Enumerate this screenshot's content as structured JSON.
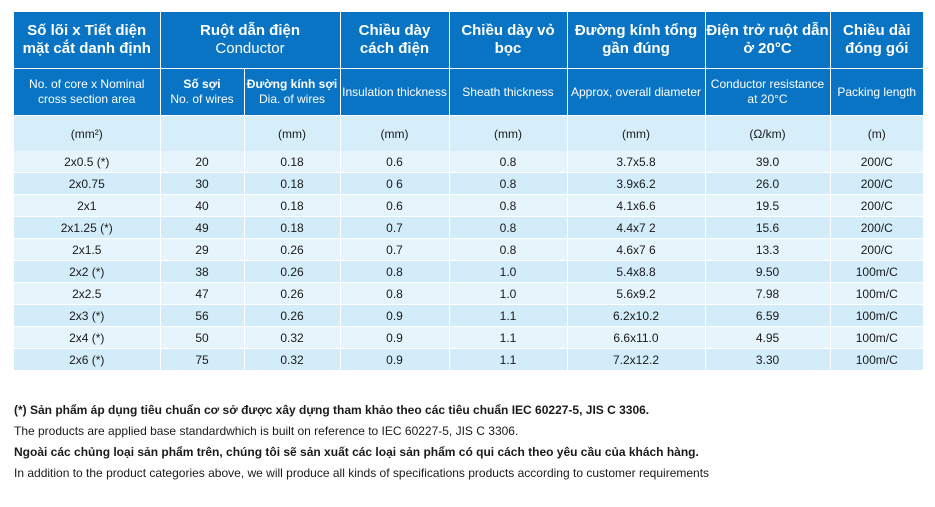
{
  "header": {
    "col1_vi": "Số lõi x Tiết diện mặt cắt danh định",
    "conductor_vi": "Ruột dẫn điện",
    "conductor_en": "Conductor",
    "insulation_vi": "Chiều dày cách điện",
    "sheath_vi": "Chiều dày vỏ bọc",
    "diameter_vi": "Đường kính tổng gần đúng",
    "resistance_vi": "Điện trở ruột dẫn ở 20°C",
    "packing_vi": "Chiều dài đóng gói"
  },
  "subheader": {
    "col1_en": "No. of core  x Nominal cross section area",
    "wires_vi": "Số sợi",
    "wires_en": "No. of wires",
    "dia_vi": "Đường kính sợi",
    "dia_en": "Dia. of wires",
    "insulation_en": "Insulation thickness",
    "sheath_en": "Sheath thickness",
    "diameter_en": "Approx, overall diameter",
    "resistance_en": "Conductor resistance at 20°C",
    "packing_en": "Packing length"
  },
  "units": [
    "(mm²)",
    "",
    "(mm)",
    "(mm)",
    "(mm)",
    "(mm)",
    "(Ω/km)",
    "(m)"
  ],
  "rows": [
    [
      "2x0.5 (*)",
      "20",
      "0.18",
      "0.6",
      "0.8",
      "3.7x5.8",
      "39.0",
      "200/C"
    ],
    [
      "2x0.75",
      "30",
      "0.18",
      "0 6",
      "0.8",
      "3.9x6.2",
      "26.0",
      "200/C"
    ],
    [
      "2x1",
      "40",
      "0.18",
      "0.6",
      "0.8",
      "4.1x6.6",
      "19.5",
      "200/C"
    ],
    [
      "2x1.25 (*)",
      "49",
      "0.18",
      "0.7",
      "0.8",
      "4.4x7 2",
      "15.6",
      "200/C"
    ],
    [
      "2x1.5",
      "29",
      "0.26",
      "0.7",
      "0.8",
      "4.6x7 6",
      "13.3",
      "200/C"
    ],
    [
      "2x2 (*)",
      "38",
      "0.26",
      "0.8",
      "1.0",
      "5.4x8.8",
      "9.50",
      "100m/C"
    ],
    [
      "2x2.5",
      "47",
      "0.26",
      "0.8",
      "1.0",
      "5.6x9.2",
      "7.98",
      "100m/C"
    ],
    [
      "2x3 (*)",
      "56",
      "0.26",
      "0.9",
      "1.1",
      "6.2x10.2",
      "6.59",
      "100m/C"
    ],
    [
      "2x4 (*)",
      "50",
      "0.32",
      "0.9",
      "1.1",
      "6.6x11.0",
      "4.95",
      "100m/C"
    ],
    [
      "2x6 (*)",
      "75",
      "0.32",
      "0.9",
      "1.1",
      "7.2x12.2",
      "3.30",
      "100m/C"
    ]
  ],
  "notes": {
    "line1": "(*) Sản phẩm áp dụng tiêu chuẩn cơ sở được xây dựng tham khảo theo các tiêu chuẩn IEC 60227-5, JIS C 3306.",
    "line2": "The products are applied base standardwhich is built on reference to IEC 60227-5, JIS C 3306.",
    "line3": "Ngoài các chủng loại sản phẩm trên, chúng tôi sẽ sản xuất các loại sản phẩm có qui cách theo yêu cầu của khách hàng.",
    "line4": "In addition to the product categories above, we will produce all kinds of specifications products according to customer requirements"
  },
  "colors": {
    "header_blue": "#0a74c4",
    "row_light": "#e6f4fc",
    "row_dark": "#d3ecf9"
  }
}
